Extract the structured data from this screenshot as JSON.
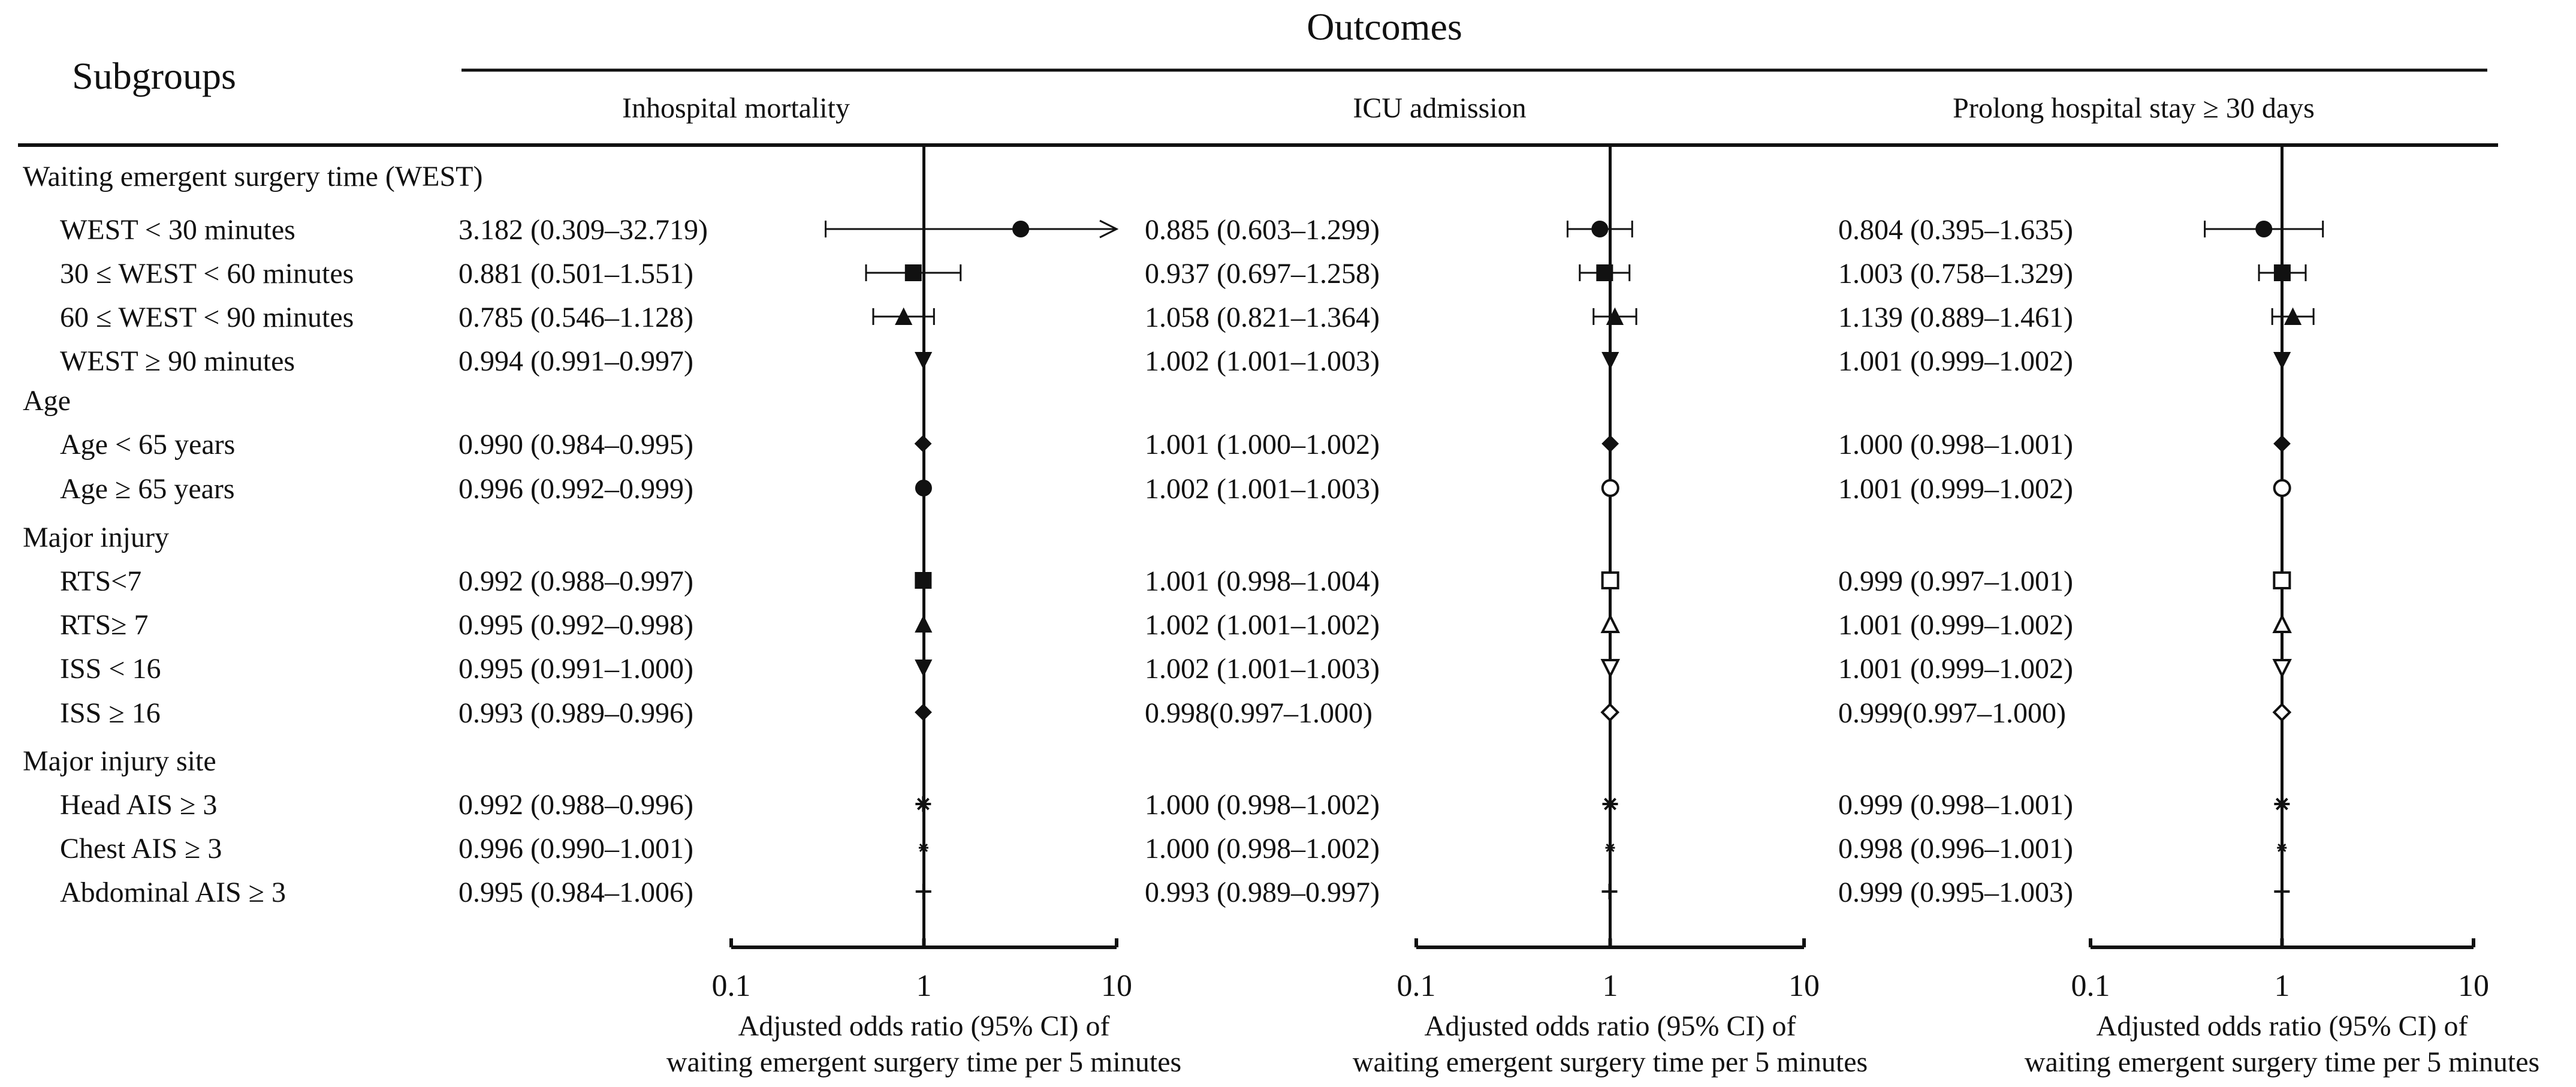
{
  "header": {
    "subgroups_label": "Subgroups",
    "outcomes_label": "Outcomes"
  },
  "rows": [
    {
      "kind": "group",
      "label": "Waiting emergent surgery time (WEST)"
    },
    {
      "kind": "item",
      "label": "WEST < 30 minutes",
      "marker": "circle-filled"
    },
    {
      "kind": "item",
      "label": "30 ≤ WEST < 60 minutes",
      "marker": "square-filled"
    },
    {
      "kind": "item",
      "label": "60 ≤ WEST < 90 minutes",
      "marker": "triangle-up-filled"
    },
    {
      "kind": "item",
      "label": "WEST ≥ 90 minutes",
      "marker": "triangle-down-filled"
    },
    {
      "kind": "group",
      "label": "Age"
    },
    {
      "kind": "item",
      "label": "Age < 65 years",
      "marker": "diamond-filled"
    },
    {
      "kind": "item",
      "label": "Age ≥ 65 years",
      "marker": "circle-filled",
      "marker_alt": "circle-open"
    },
    {
      "kind": "group",
      "label": "Major injury"
    },
    {
      "kind": "item",
      "label": "RTS<7",
      "marker": "square-filled",
      "marker_alt": "square-open"
    },
    {
      "kind": "item",
      "label": "RTS≥ 7",
      "marker": "triangle-up-filled",
      "marker_alt": "triangle-up-open"
    },
    {
      "kind": "item",
      "label": "ISS < 16",
      "marker": "triangle-down-filled",
      "marker_alt": "triangle-down-open"
    },
    {
      "kind": "item",
      "label": "ISS ≥ 16",
      "marker": "diamond-filled",
      "marker_alt": "diamond-open"
    },
    {
      "kind": "group",
      "label": "Major injury site"
    },
    {
      "kind": "item",
      "label": "Head AIS ≥ 3",
      "marker": "asterisk"
    },
    {
      "kind": "item",
      "label": "Chest AIS ≥ 3",
      "marker": "star"
    },
    {
      "kind": "item",
      "label": "Abdominal AIS ≥ 3",
      "marker": "plus"
    }
  ],
  "chart_data": {
    "type": "forest",
    "x_scale": "log10",
    "xlim": [
      0.1,
      10
    ],
    "reference_line": 1,
    "tick_labels": [
      "0.1",
      "1",
      "10"
    ],
    "tick_values": [
      0.1,
      1,
      10
    ],
    "xlabel_line1": "Adjusted odds ratio (95% CI) of",
    "xlabel_line2": "waiting emergent surgery time per 5 minutes",
    "panels": [
      {
        "title": "Inhospital mortality",
        "use_open_markers": false,
        "estimates": [
          {
            "text": "3.182 (0.309–32.719)",
            "or": 3.182,
            "lo": 0.309,
            "hi": 32.719
          },
          {
            "text": "0.881 (0.501–1.551)",
            "or": 0.881,
            "lo": 0.501,
            "hi": 1.551
          },
          {
            "text": "0.785 (0.546–1.128)",
            "or": 0.785,
            "lo": 0.546,
            "hi": 1.128
          },
          {
            "text": "0.994 (0.991–0.997)",
            "or": 0.994,
            "lo": 0.991,
            "hi": 0.997
          },
          {
            "text": "0.990 (0.984–0.995)",
            "or": 0.99,
            "lo": 0.984,
            "hi": 0.995
          },
          {
            "text": "0.996 (0.992–0.999)",
            "or": 0.996,
            "lo": 0.992,
            "hi": 0.999
          },
          {
            "text": "0.992 (0.988–0.997)",
            "or": 0.992,
            "lo": 0.988,
            "hi": 0.997
          },
          {
            "text": "0.995 (0.992–0.998)",
            "or": 0.995,
            "lo": 0.992,
            "hi": 0.998
          },
          {
            "text": "0.995 (0.991–1.000)",
            "or": 0.995,
            "lo": 0.991,
            "hi": 1.0
          },
          {
            "text": "0.993 (0.989–0.996)",
            "or": 0.993,
            "lo": 0.989,
            "hi": 0.996
          },
          {
            "text": "0.992 (0.988–0.996)",
            "or": 0.992,
            "lo": 0.988,
            "hi": 0.996
          },
          {
            "text": "0.996 (0.990–1.001)",
            "or": 0.996,
            "lo": 0.99,
            "hi": 1.001
          },
          {
            "text": "0.995 (0.984–1.006)",
            "or": 0.995,
            "lo": 0.984,
            "hi": 1.006
          }
        ]
      },
      {
        "title": "ICU admission",
        "use_open_markers": true,
        "estimates": [
          {
            "text": "0.885 (0.603–1.299)",
            "or": 0.885,
            "lo": 0.603,
            "hi": 1.299
          },
          {
            "text": "0.937 (0.697–1.258)",
            "or": 0.937,
            "lo": 0.697,
            "hi": 1.258
          },
          {
            "text": "1.058 (0.821–1.364)",
            "or": 1.058,
            "lo": 0.821,
            "hi": 1.364
          },
          {
            "text": "1.002 (1.001–1.003)",
            "or": 1.002,
            "lo": 1.001,
            "hi": 1.003
          },
          {
            "text": "1.001 (1.000–1.002)",
            "or": 1.001,
            "lo": 1.0,
            "hi": 1.002
          },
          {
            "text": "1.002 (1.001–1.003)",
            "or": 1.002,
            "lo": 1.001,
            "hi": 1.003
          },
          {
            "text": "1.001 (0.998–1.004)",
            "or": 1.001,
            "lo": 0.998,
            "hi": 1.004
          },
          {
            "text": "1.002 (1.001–1.002)",
            "or": 1.002,
            "lo": 1.001,
            "hi": 1.002
          },
          {
            "text": "1.002 (1.001–1.003)",
            "or": 1.002,
            "lo": 1.001,
            "hi": 1.003
          },
          {
            "text": "0.998(0.997–1.000)",
            "or": 0.998,
            "lo": 0.997,
            "hi": 1.0
          },
          {
            "text": "1.000 (0.998–1.002)",
            "or": 1.0,
            "lo": 0.998,
            "hi": 1.002
          },
          {
            "text": "1.000 (0.998–1.002)",
            "or": 1.0,
            "lo": 0.998,
            "hi": 1.002
          },
          {
            "text": "0.993 (0.989–0.997)",
            "or": 0.993,
            "lo": 0.989,
            "hi": 0.997
          }
        ]
      },
      {
        "title": "Prolong hospital stay ≥ 30 days",
        "use_open_markers": true,
        "estimates": [
          {
            "text": "0.804 (0.395–1.635)",
            "or": 0.804,
            "lo": 0.395,
            "hi": 1.635
          },
          {
            "text": "1.003 (0.758–1.329)",
            "or": 1.003,
            "lo": 0.758,
            "hi": 1.329
          },
          {
            "text": "1.139 (0.889–1.461)",
            "or": 1.139,
            "lo": 0.889,
            "hi": 1.461
          },
          {
            "text": "1.001 (0.999–1.002)",
            "or": 1.001,
            "lo": 0.999,
            "hi": 1.002
          },
          {
            "text": "1.000 (0.998–1.001)",
            "or": 1.0,
            "lo": 0.998,
            "hi": 1.001
          },
          {
            "text": "1.001 (0.999–1.002)",
            "or": 1.001,
            "lo": 0.999,
            "hi": 1.002
          },
          {
            "text": "0.999 (0.997–1.001)",
            "or": 0.999,
            "lo": 0.997,
            "hi": 1.001
          },
          {
            "text": "1.001 (0.999–1.002)",
            "or": 1.001,
            "lo": 0.999,
            "hi": 1.002
          },
          {
            "text": "1.001 (0.999–1.002)",
            "or": 1.001,
            "lo": 0.999,
            "hi": 1.002
          },
          {
            "text": "0.999(0.997–1.000)",
            "or": 0.999,
            "lo": 0.997,
            "hi": 1.0
          },
          {
            "text": "0.999 (0.998–1.001)",
            "or": 0.999,
            "lo": 0.998,
            "hi": 1.001
          },
          {
            "text": "0.998 (0.996–1.001)",
            "or": 0.998,
            "lo": 0.996,
            "hi": 1.001
          },
          {
            "text": "0.999 (0.995–1.003)",
            "or": 0.999,
            "lo": 0.995,
            "hi": 1.003
          }
        ]
      }
    ]
  }
}
